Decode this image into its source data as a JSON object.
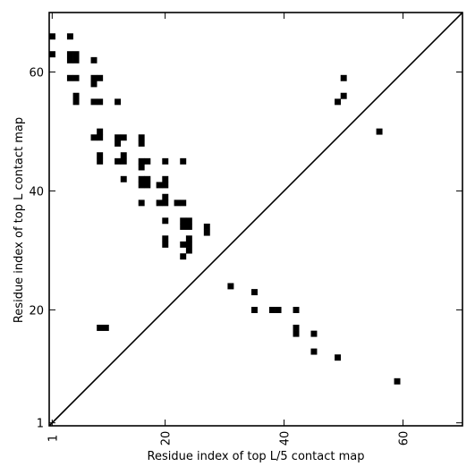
{
  "chart_data": {
    "type": "heatmap",
    "title": "",
    "xlabel": "Residue index of top L/5 contact map",
    "ylabel": "Residue index of top L contact map",
    "xlim": [
      0.5,
      70
    ],
    "ylim": [
      0.5,
      70
    ],
    "xticks": [
      1,
      20,
      40,
      60
    ],
    "xtick_labels": [
      "1",
      "20",
      "40",
      "60"
    ],
    "yticks": [
      1,
      20,
      40,
      60
    ],
    "ytick_labels": [
      "1",
      "20",
      "40",
      "60"
    ],
    "grid": false,
    "diagonal_line": true,
    "cell_color": "#000000",
    "cells": [
      [
        1,
        66
      ],
      [
        4,
        66
      ],
      [
        1,
        63
      ],
      [
        4,
        63
      ],
      [
        5,
        63
      ],
      [
        4,
        62
      ],
      [
        5,
        62
      ],
      [
        8,
        62
      ],
      [
        4,
        59
      ],
      [
        5,
        59
      ],
      [
        8,
        59
      ],
      [
        9,
        59
      ],
      [
        8,
        58
      ],
      [
        5,
        56
      ],
      [
        5,
        55
      ],
      [
        8,
        55
      ],
      [
        9,
        55
      ],
      [
        12,
        55
      ],
      [
        9,
        50
      ],
      [
        8,
        49
      ],
      [
        9,
        49
      ],
      [
        12,
        49
      ],
      [
        13,
        49
      ],
      [
        16,
        49
      ],
      [
        12,
        48
      ],
      [
        16,
        48
      ],
      [
        9,
        46
      ],
      [
        13,
        46
      ],
      [
        9,
        45
      ],
      [
        12,
        45
      ],
      [
        13,
        45
      ],
      [
        16,
        45
      ],
      [
        17,
        45
      ],
      [
        20,
        45
      ],
      [
        23,
        45
      ],
      [
        16,
        44
      ],
      [
        13,
        42
      ],
      [
        16,
        42
      ],
      [
        17,
        42
      ],
      [
        20,
        42
      ],
      [
        16,
        41
      ],
      [
        17,
        41
      ],
      [
        19,
        41
      ],
      [
        20,
        41
      ],
      [
        20,
        39
      ],
      [
        16,
        38
      ],
      [
        19,
        38
      ],
      [
        20,
        38
      ],
      [
        22,
        38
      ],
      [
        23,
        38
      ],
      [
        20,
        35
      ],
      [
        23,
        35
      ],
      [
        24,
        35
      ],
      [
        23,
        34
      ],
      [
        24,
        34
      ],
      [
        27,
        34
      ],
      [
        27,
        33
      ],
      [
        20,
        32
      ],
      [
        24,
        32
      ],
      [
        20,
        31
      ],
      [
        23,
        31
      ],
      [
        24,
        31
      ],
      [
        24,
        30
      ],
      [
        23,
        29
      ],
      [
        9,
        17
      ],
      [
        10,
        17
      ],
      [
        31,
        24
      ],
      [
        35,
        23
      ],
      [
        35,
        20
      ],
      [
        38,
        20
      ],
      [
        39,
        20
      ],
      [
        42,
        20
      ],
      [
        42,
        17
      ],
      [
        42,
        16
      ],
      [
        45,
        16
      ],
      [
        45,
        13
      ],
      [
        49,
        12
      ],
      [
        59,
        8
      ],
      [
        50,
        59
      ],
      [
        50,
        56
      ],
      [
        49,
        55
      ],
      [
        56,
        50
      ]
    ]
  }
}
